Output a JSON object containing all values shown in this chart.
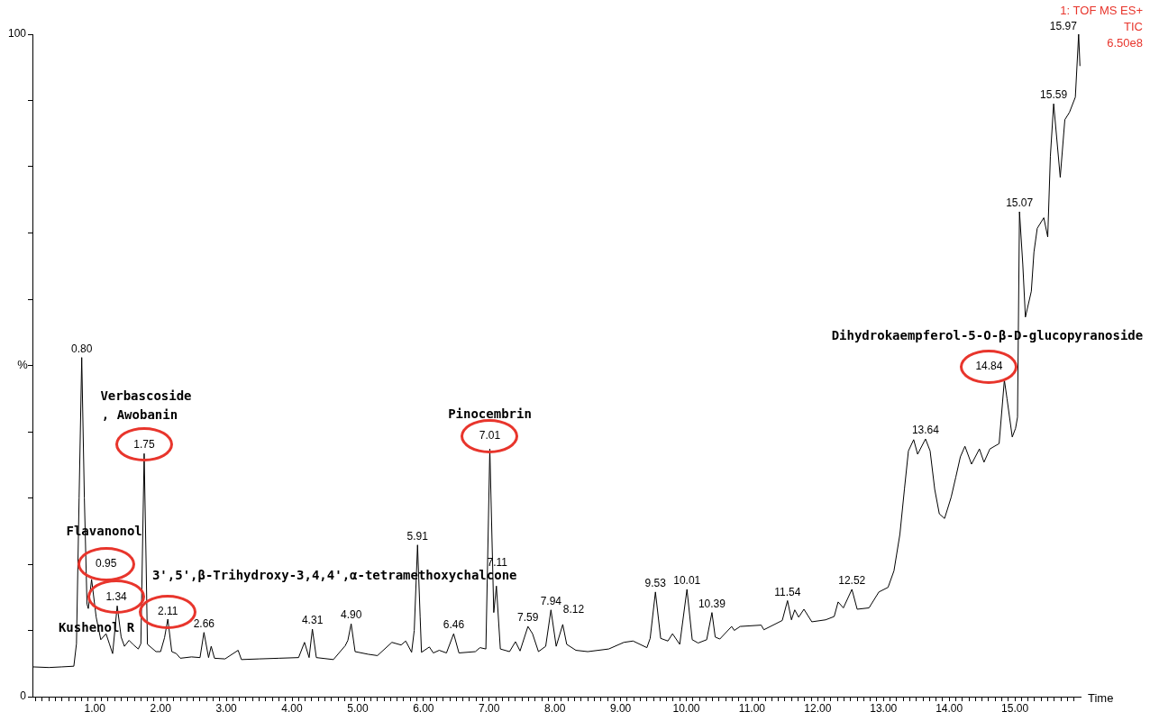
{
  "chart_data": {
    "type": "line",
    "xlabel": "Time",
    "ylabel": "%",
    "color": "#000000",
    "xlim": [
      0.05,
      16.0
    ],
    "ylim": [
      0,
      100
    ],
    "xticks": [
      {
        "value": 0.1,
        "label": null
      },
      {
        "value": 0.2,
        "label": null
      },
      {
        "value": 0.3,
        "label": null
      },
      {
        "value": 0.4,
        "label": null
      },
      {
        "value": 0.5,
        "label": null
      },
      {
        "value": 0.6,
        "label": null
      },
      {
        "value": 0.7,
        "label": null
      },
      {
        "value": 0.8,
        "label": null
      },
      {
        "value": 0.9,
        "label": null
      },
      {
        "value": 1,
        "label": "1.00"
      },
      {
        "value": 1.1,
        "label": null
      },
      {
        "value": 1.2,
        "label": null
      },
      {
        "value": 1.3,
        "label": null
      },
      {
        "value": 1.4,
        "label": null
      },
      {
        "value": 1.5,
        "label": null
      },
      {
        "value": 1.6,
        "label": null
      },
      {
        "value": 1.7,
        "label": null
      },
      {
        "value": 1.8,
        "label": null
      },
      {
        "value": 1.9,
        "label": null
      },
      {
        "value": 2,
        "label": "2.00"
      },
      {
        "value": 2.1,
        "label": null
      },
      {
        "value": 2.2,
        "label": null
      },
      {
        "value": 2.3,
        "label": null
      },
      {
        "value": 2.4,
        "label": null
      },
      {
        "value": 2.5,
        "label": null
      },
      {
        "value": 2.6,
        "label": null
      },
      {
        "value": 2.7,
        "label": null
      },
      {
        "value": 2.8,
        "label": null
      },
      {
        "value": 2.9,
        "label": null
      },
      {
        "value": 3,
        "label": "3.00"
      },
      {
        "value": 3.1,
        "label": null
      },
      {
        "value": 3.2,
        "label": null
      },
      {
        "value": 3.3,
        "label": null
      },
      {
        "value": 3.4,
        "label": null
      },
      {
        "value": 3.5,
        "label": null
      },
      {
        "value": 3.6,
        "label": null
      },
      {
        "value": 3.7,
        "label": null
      },
      {
        "value": 3.8,
        "label": null
      },
      {
        "value": 3.9,
        "label": null
      },
      {
        "value": 4,
        "label": "4.00"
      },
      {
        "value": 4.1,
        "label": null
      },
      {
        "value": 4.2,
        "label": null
      },
      {
        "value": 4.3,
        "label": null
      },
      {
        "value": 4.4,
        "label": null
      },
      {
        "value": 4.5,
        "label": null
      },
      {
        "value": 4.6,
        "label": null
      },
      {
        "value": 4.7,
        "label": null
      },
      {
        "value": 4.8,
        "label": null
      },
      {
        "value": 4.9,
        "label": null
      },
      {
        "value": 5,
        "label": "5.00"
      },
      {
        "value": 5.1,
        "label": null
      },
      {
        "value": 5.2,
        "label": null
      },
      {
        "value": 5.3,
        "label": null
      },
      {
        "value": 5.4,
        "label": null
      },
      {
        "value": 5.5,
        "label": null
      },
      {
        "value": 5.6,
        "label": null
      },
      {
        "value": 5.7,
        "label": null
      },
      {
        "value": 5.8,
        "label": null
      },
      {
        "value": 5.9,
        "label": null
      },
      {
        "value": 6,
        "label": "6.00"
      },
      {
        "value": 6.1,
        "label": null
      },
      {
        "value": 6.2,
        "label": null
      },
      {
        "value": 6.3,
        "label": null
      },
      {
        "value": 6.4,
        "label": null
      },
      {
        "value": 6.5,
        "label": null
      },
      {
        "value": 6.6,
        "label": null
      },
      {
        "value": 6.7,
        "label": null
      },
      {
        "value": 6.8,
        "label": null
      },
      {
        "value": 6.9,
        "label": null
      },
      {
        "value": 7,
        "label": "7.00"
      },
      {
        "value": 7.1,
        "label": null
      },
      {
        "value": 7.2,
        "label": null
      },
      {
        "value": 7.3,
        "label": null
      },
      {
        "value": 7.4,
        "label": null
      },
      {
        "value": 7.5,
        "label": null
      },
      {
        "value": 7.6,
        "label": null
      },
      {
        "value": 7.7,
        "label": null
      },
      {
        "value": 7.8,
        "label": null
      },
      {
        "value": 7.9,
        "label": null
      },
      {
        "value": 8,
        "label": "8.00"
      },
      {
        "value": 8.1,
        "label": null
      },
      {
        "value": 8.2,
        "label": null
      },
      {
        "value": 8.3,
        "label": null
      },
      {
        "value": 8.4,
        "label": null
      },
      {
        "value": 8.5,
        "label": null
      },
      {
        "value": 8.6,
        "label": null
      },
      {
        "value": 8.7,
        "label": null
      },
      {
        "value": 8.8,
        "label": null
      },
      {
        "value": 8.9,
        "label": null
      },
      {
        "value": 9,
        "label": "9.00"
      },
      {
        "value": 9.1,
        "label": null
      },
      {
        "value": 9.2,
        "label": null
      },
      {
        "value": 9.3,
        "label": null
      },
      {
        "value": 9.4,
        "label": null
      },
      {
        "value": 9.5,
        "label": null
      },
      {
        "value": 9.6,
        "label": null
      },
      {
        "value": 9.7,
        "label": null
      },
      {
        "value": 9.8,
        "label": null
      },
      {
        "value": 9.9,
        "label": null
      },
      {
        "value": 10,
        "label": "10.00"
      },
      {
        "value": 10.1,
        "label": null
      },
      {
        "value": 10.2,
        "label": null
      },
      {
        "value": 10.3,
        "label": null
      },
      {
        "value": 10.4,
        "label": null
      },
      {
        "value": 10.5,
        "label": null
      },
      {
        "value": 10.6,
        "label": null
      },
      {
        "value": 10.7,
        "label": null
      },
      {
        "value": 10.8,
        "label": null
      },
      {
        "value": 10.9,
        "label": null
      },
      {
        "value": 11,
        "label": "11.00"
      },
      {
        "value": 11.1,
        "label": null
      },
      {
        "value": 11.2,
        "label": null
      },
      {
        "value": 11.3,
        "label": null
      },
      {
        "value": 11.4,
        "label": null
      },
      {
        "value": 11.5,
        "label": null
      },
      {
        "value": 11.6,
        "label": null
      },
      {
        "value": 11.7,
        "label": null
      },
      {
        "value": 11.8,
        "label": null
      },
      {
        "value": 11.9,
        "label": null
      },
      {
        "value": 12,
        "label": "12.00"
      },
      {
        "value": 12.1,
        "label": null
      },
      {
        "value": 12.2,
        "label": null
      },
      {
        "value": 12.3,
        "label": null
      },
      {
        "value": 12.4,
        "label": null
      },
      {
        "value": 12.5,
        "label": null
      },
      {
        "value": 12.6,
        "label": null
      },
      {
        "value": 12.7,
        "label": null
      },
      {
        "value": 12.8,
        "label": null
      },
      {
        "value": 12.9,
        "label": null
      },
      {
        "value": 13,
        "label": "13.00"
      },
      {
        "value": 13.1,
        "label": null
      },
      {
        "value": 13.2,
        "label": null
      },
      {
        "value": 13.3,
        "label": null
      },
      {
        "value": 13.4,
        "label": null
      },
      {
        "value": 13.5,
        "label": null
      },
      {
        "value": 13.6,
        "label": null
      },
      {
        "value": 13.7,
        "label": null
      },
      {
        "value": 13.8,
        "label": null
      },
      {
        "value": 13.9,
        "label": null
      },
      {
        "value": 14,
        "label": "14.00"
      },
      {
        "value": 14.1,
        "label": null
      },
      {
        "value": 14.2,
        "label": null
      },
      {
        "value": 14.3,
        "label": null
      },
      {
        "value": 14.4,
        "label": null
      },
      {
        "value": 14.5,
        "label": null
      },
      {
        "value": 14.6,
        "label": null
      },
      {
        "value": 14.7,
        "label": null
      },
      {
        "value": 14.8,
        "label": null
      },
      {
        "value": 14.9,
        "label": null
      },
      {
        "value": 15,
        "label": "15.00"
      },
      {
        "value": 15.1,
        "label": null
      },
      {
        "value": 15.2,
        "label": null
      },
      {
        "value": 15.3,
        "label": null
      },
      {
        "value": 15.4,
        "label": null
      },
      {
        "value": 15.5,
        "label": null
      },
      {
        "value": 15.6,
        "label": null
      },
      {
        "value": 15.7,
        "label": null
      },
      {
        "value": 15.8,
        "label": null
      },
      {
        "value": 15.9,
        "label": null
      }
    ],
    "yticks": [
      0,
      {
        "value": 10,
        "label": null
      },
      {
        "value": 20,
        "label": null
      },
      {
        "value": 30,
        "label": null
      },
      {
        "value": 40,
        "label": null
      },
      {
        "value": 50,
        "label": null
      },
      {
        "value": 60,
        "label": null
      },
      {
        "value": 70,
        "label": null
      },
      {
        "value": 80,
        "label": null
      },
      {
        "value": 90,
        "label": null
      },
      100
    ],
    "x": [
      0.05,
      0.3,
      0.5,
      0.68,
      0.72,
      0.76,
      0.8,
      0.84,
      0.88,
      0.9,
      0.95,
      1.02,
      1.09,
      1.17,
      1.22,
      1.27,
      1.34,
      1.4,
      1.45,
      1.52,
      1.59,
      1.66,
      1.7,
      1.75,
      1.78,
      1.8,
      1.93,
      2.0,
      2.06,
      2.11,
      2.17,
      2.24,
      2.3,
      2.47,
      2.6,
      2.66,
      2.73,
      2.77,
      2.82,
      2.98,
      3.18,
      3.23,
      3.5,
      3.8,
      4.1,
      4.19,
      4.26,
      4.31,
      4.37,
      4.63,
      4.81,
      4.85,
      4.9,
      4.96,
      5.16,
      5.3,
      5.52,
      5.66,
      5.73,
      5.82,
      5.86,
      5.91,
      5.95,
      5.97,
      6.09,
      6.15,
      6.24,
      6.35,
      6.46,
      6.54,
      6.79,
      6.86,
      6.95,
      7.01,
      7.07,
      7.11,
      7.17,
      7.31,
      7.4,
      7.47,
      7.59,
      7.66,
      7.75,
      7.86,
      7.94,
      8.02,
      8.12,
      8.18,
      8.32,
      8.5,
      8.82,
      9.05,
      9.19,
      9.4,
      9.45,
      9.53,
      9.61,
      9.72,
      9.79,
      9.9,
      10.01,
      10.09,
      10.18,
      10.31,
      10.39,
      10.44,
      10.51,
      10.69,
      10.73,
      10.82,
      11.14,
      11.18,
      11.46,
      11.54,
      11.6,
      11.65,
      11.71,
      11.79,
      11.91,
      12.12,
      12.25,
      12.31,
      12.39,
      12.52,
      12.6,
      12.78,
      12.93,
      13.07,
      13.16,
      13.25,
      13.32,
      13.38,
      13.46,
      13.52,
      13.64,
      13.71,
      13.78,
      13.85,
      13.93,
      14.03,
      14.1,
      14.17,
      14.24,
      14.34,
      14.46,
      14.53,
      14.62,
      14.76,
      14.84,
      14.88,
      14.96,
      15.01,
      15.04,
      15.07,
      15.12,
      15.16,
      15.25,
      15.29,
      15.34,
      15.44,
      15.5,
      15.54,
      15.59,
      15.69,
      15.76,
      15.83,
      15.92,
      15.97,
      15.99
    ],
    "values": [
      4.5,
      4.4,
      4.5,
      4.6,
      8,
      30,
      51.2,
      30,
      14,
      13.3,
      17.7,
      12,
      8.6,
      9.5,
      8.0,
      6.5,
      13.7,
      9.0,
      7.6,
      8.5,
      7.8,
      7.2,
      8,
      36.7,
      20,
      7.9,
      6.8,
      6.8,
      8.9,
      11.7,
      6.8,
      6.5,
      5.8,
      6.0,
      5.9,
      9.7,
      5.9,
      7.6,
      5.8,
      5.7,
      7.0,
      5.6,
      5.7,
      5.8,
      5.9,
      8.2,
      5.9,
      10.2,
      5.9,
      5.6,
      7.7,
      8.5,
      11.0,
      6.8,
      6.4,
      6.2,
      8.2,
      7.8,
      8.4,
      6.7,
      10,
      22.9,
      12,
      6.7,
      7.5,
      6.6,
      7.0,
      6.6,
      9.5,
      6.6,
      6.8,
      7.4,
      7.2,
      37.4,
      12.7,
      16.7,
      7.2,
      6.8,
      8.3,
      6.9,
      10.6,
      9.5,
      6.8,
      7.6,
      13.1,
      7.6,
      10.9,
      7.9,
      7.0,
      6.8,
      7.2,
      8.2,
      8.4,
      7.4,
      8.8,
      15.8,
      8.8,
      8.4,
      9.5,
      7.9,
      16.2,
      8.6,
      8.1,
      8.6,
      12.7,
      9.0,
      8.7,
      10.6,
      10.0,
      10.6,
      10.8,
      10.1,
      11.5,
      14.5,
      11.6,
      13.1,
      12.0,
      13.2,
      11.3,
      11.6,
      12.1,
      14.3,
      13.4,
      16.2,
      13.2,
      13.4,
      15.8,
      16.5,
      19.0,
      24.5,
      31.4,
      37.1,
      38.8,
      36.6,
      38.9,
      37.1,
      31.3,
      27.6,
      26.9,
      30.1,
      33.1,
      36.2,
      37.8,
      35.1,
      37.4,
      35.4,
      37.4,
      38.2,
      47.8,
      45.0,
      39.2,
      40.5,
      42.2,
      73.2,
      65.3,
      57.3,
      61.2,
      67.1,
      70.7,
      72.3,
      69.4,
      81.6,
      89.5,
      78.4,
      87.1,
      88.2,
      90.5,
      100,
      95.2
    ],
    "annotations": [
      {
        "text": "0.80",
        "x": 0.8,
        "y": 51.2
      },
      {
        "text": "0.95",
        "x": 0.95,
        "y": 17.7
      },
      {
        "text": "1.34",
        "x": 1.34,
        "y": 13.7
      },
      {
        "text": "1.75",
        "x": 1.75,
        "y": 36.7
      },
      {
        "text": "2.11",
        "x": 2.11,
        "y": 11.7
      },
      {
        "text": "2.66",
        "x": 2.66,
        "y": 9.7
      },
      {
        "text": "4.31",
        "x": 4.31,
        "y": 10.2
      },
      {
        "text": "4.90",
        "x": 4.9,
        "y": 11.0
      },
      {
        "text": "5.91",
        "x": 5.91,
        "y": 22.9
      },
      {
        "text": "6.46",
        "x": 6.46,
        "y": 9.5
      },
      {
        "text": "7.01",
        "x": 7.01,
        "y": 37.4
      },
      {
        "text": "7.11",
        "x": 7.11,
        "y": 16.7
      },
      {
        "text": "7.59",
        "x": 7.59,
        "y": 10.6
      },
      {
        "text": "7.94",
        "x": 7.94,
        "y": 13.1
      },
      {
        "text": "8.12",
        "x": 8.12,
        "y": 10.9
      },
      {
        "text": "9.53",
        "x": 9.53,
        "y": 15.8
      },
      {
        "text": "10.01",
        "x": 10.01,
        "y": 16.2
      },
      {
        "text": "10.39",
        "x": 10.39,
        "y": 12.7
      },
      {
        "text": "11.54",
        "x": 11.54,
        "y": 14.5
      },
      {
        "text": "12.52",
        "x": 12.52,
        "y": 16.2
      },
      {
        "text": "13.64",
        "x": 13.64,
        "y": 38.9
      },
      {
        "text": "14.84",
        "x": 14.84,
        "y": 47.8
      },
      {
        "text": "15.07",
        "x": 15.07,
        "y": 73.2
      },
      {
        "text": "15.59",
        "x": 15.59,
        "y": 89.5
      },
      {
        "text": "15.97",
        "x": 15.97,
        "y": 100
      },
      "Flavanonol",
      "Kushenol R",
      "Verbascoside",
      ", Awobanin",
      "3',5',β-Trihydroxy-3,4,4',α-tetramethoxychalcone",
      "Pinocembrin",
      "Dihydrokaempferol-5-O-β-D-glucopyranoside",
      "1: TOF MS ES+",
      "TIC",
      "6.50e8"
    ]
  }
}
